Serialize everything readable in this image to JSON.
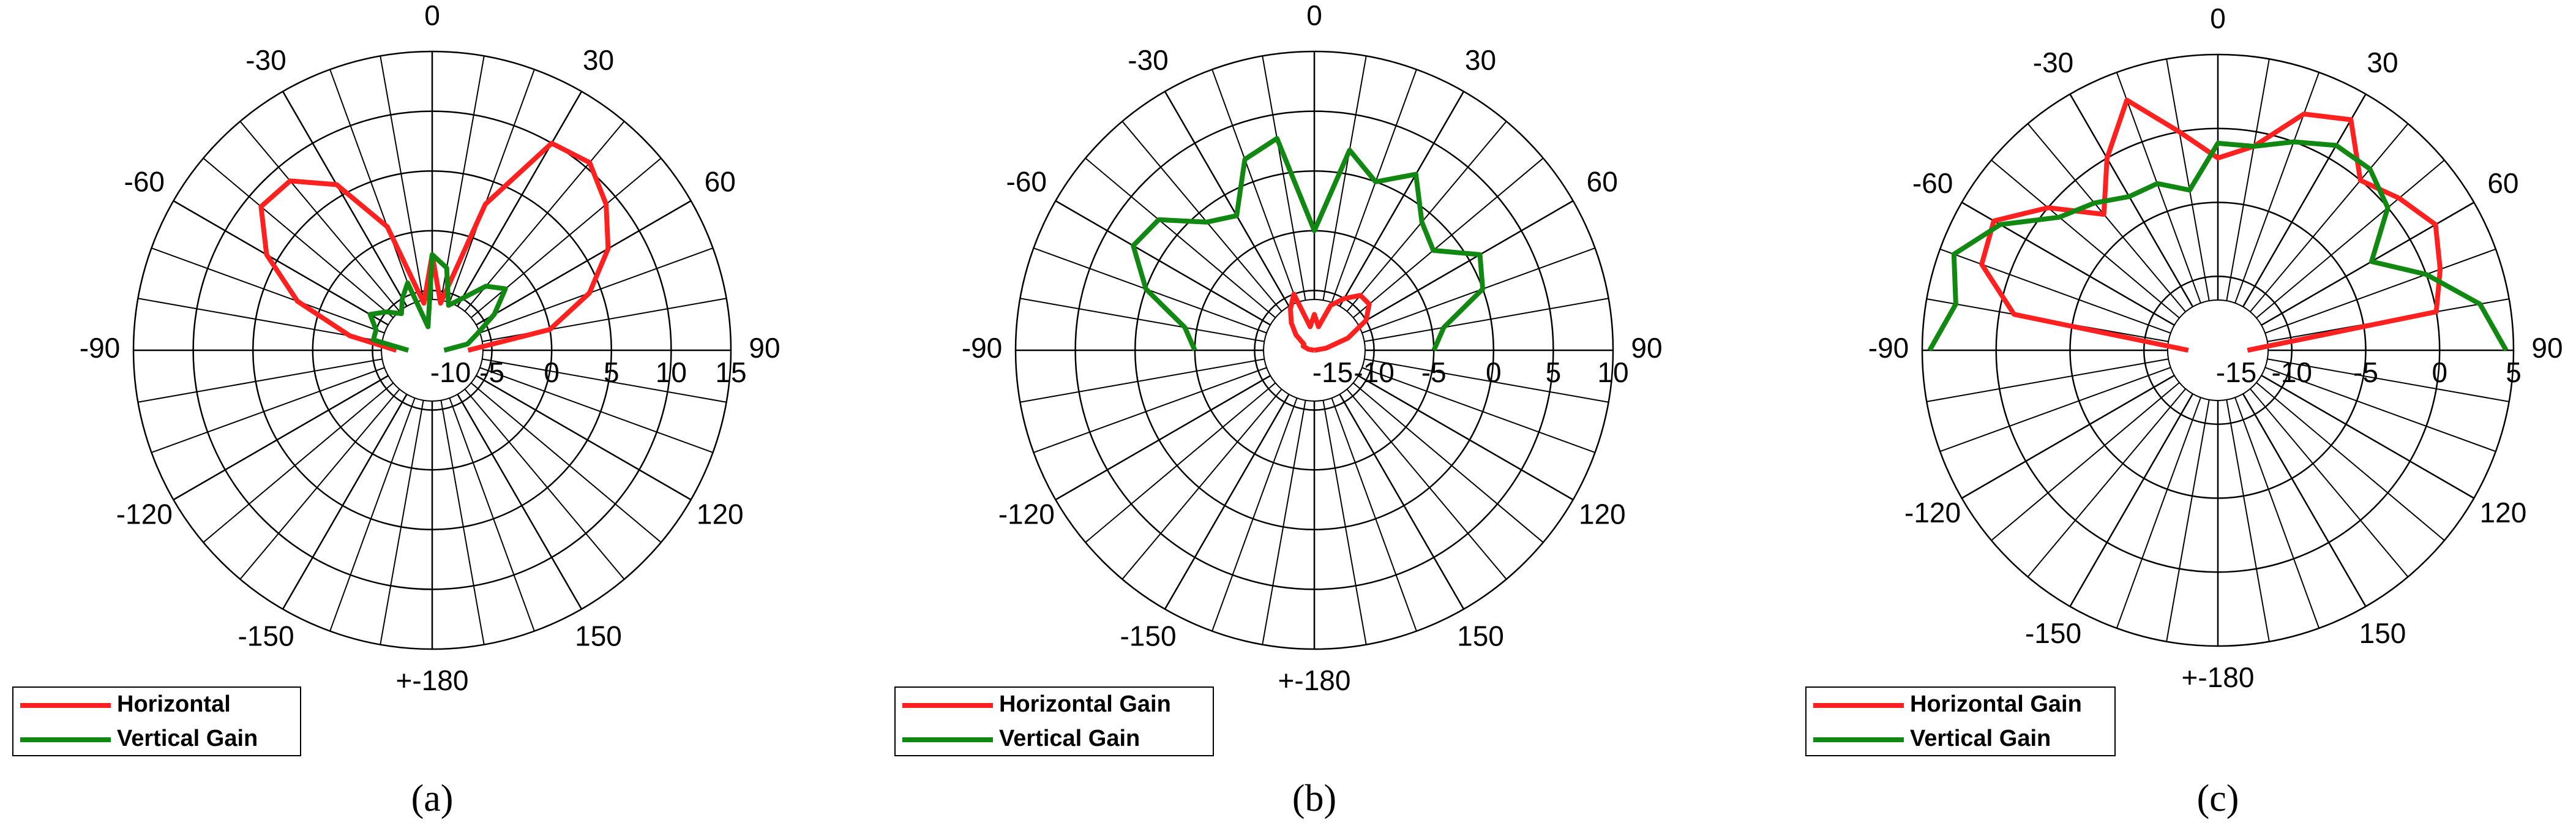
{
  "chart_data": [
    {
      "type": "polar",
      "caption": "(a)",
      "x": [
        -90,
        -80,
        -70,
        -60,
        -50,
        -40,
        -30,
        -20,
        -10,
        0,
        10,
        20,
        30,
        40,
        50,
        60,
        70,
        80,
        90
      ],
      "series": [
        {
          "name": "Horizontal",
          "color": "#ff2020",
          "values": [
            -7,
            -3,
            2,
            6,
            8.7,
            8.5,
            6,
            1,
            -6,
            -2,
            -6,
            3,
            10,
            10.5,
            9,
            7,
            4,
            0,
            -7
          ]
        },
        {
          "name": "Vertical Gain",
          "color": "#118811",
          "values": [
            -8,
            -5,
            -5,
            -4,
            -5,
            -6,
            -5,
            -4,
            -8,
            -2,
            -3,
            -6,
            -5,
            -3,
            -2,
            -4,
            -6,
            -7,
            -9
          ]
        }
      ],
      "rlim": [
        -10,
        15
      ],
      "rticks": [
        -10,
        -5,
        0,
        5,
        10,
        15
      ],
      "thetaticks": [
        0,
        30,
        60,
        90,
        120,
        150,
        {
          "value": 180,
          "label": "+-180"
        },
        -150,
        -120,
        -90,
        -60,
        -30
      ]
    },
    {
      "type": "polar",
      "caption": "(b)",
      "x": [
        -90,
        -80,
        -70,
        -60,
        -50,
        -40,
        -30,
        -20,
        -10,
        0,
        10,
        20,
        30,
        40,
        50,
        60,
        70,
        80,
        90
      ],
      "series": [
        {
          "name": "Horizontal Gain",
          "color": "#ff2020",
          "values": [
            -15,
            -14.5,
            -14,
            -14,
            -13,
            -12,
            -11,
            -10,
            -13,
            -12,
            -13,
            -11,
            -10,
            -9,
            -9,
            -10,
            -12,
            -14,
            -15
          ]
        },
        {
          "name": "Vertical Gain",
          "color": "#118811",
          "values": [
            -5,
            -4,
            0,
            2.5,
            2,
            -1,
            -2,
            2,
            3,
            -5,
            2,
            0,
            2,
            -1,
            -2,
            1,
            0,
            -4,
            -5
          ]
        }
      ],
      "rlim": [
        -15,
        10
      ],
      "rticks": [
        -15,
        -10,
        -5,
        0,
        5,
        10
      ],
      "thetaticks": [
        0,
        30,
        60,
        90,
        120,
        150,
        {
          "value": 180,
          "label": "+-180"
        },
        -150,
        -120,
        -90,
        -60,
        -30
      ]
    },
    {
      "type": "polar",
      "caption": "(c)",
      "x": [
        -90,
        -80,
        -70,
        -60,
        -50,
        -40,
        -30,
        -20,
        -10,
        0,
        10,
        20,
        30,
        40,
        50,
        60,
        70,
        80,
        90
      ],
      "series": [
        {
          "name": "Horizontal Gain",
          "color": "#ff2020",
          "values": [
            -13,
            -1,
            2,
            2.5,
            0,
            -3,
            0,
            3,
            0,
            -2,
            -1,
            2,
            3,
            0,
            1,
            2,
            1,
            0,
            -13
          ]
        },
        {
          "name": "Vertical Gain",
          "color": "#118811",
          "values": [
            4.5,
            3,
            4,
            2,
            -1,
            -2,
            -3,
            -3,
            -4,
            -1,
            -1,
            0,
            1,
            1,
            0,
            -3,
            0,
            3,
            4.5
          ]
        }
      ],
      "rlim": [
        -15,
        5
      ],
      "rticks": [
        -15,
        -10,
        -5,
        0,
        5
      ],
      "thetaticks": [
        0,
        30,
        60,
        90,
        120,
        150,
        {
          "value": 180,
          "label": "+-180"
        },
        -150,
        -120,
        -90,
        -60,
        -30
      ]
    }
  ]
}
